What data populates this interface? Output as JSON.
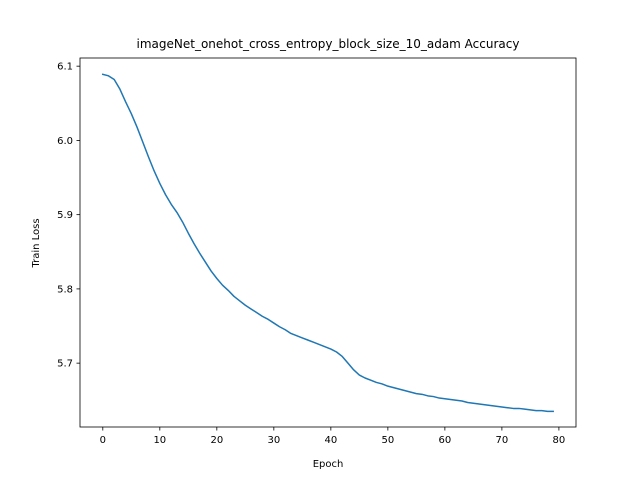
{
  "chart_data": {
    "type": "line",
    "title": "imageNet_onehot_cross_entropy_block_size_10_adam Accuracy",
    "xlabel": "Epoch",
    "ylabel": "Train Loss",
    "xlim": [
      -4,
      83
    ],
    "ylim": [
      5.614,
      6.111
    ],
    "xticks": [
      0,
      10,
      20,
      30,
      40,
      50,
      60,
      70,
      80
    ],
    "yticks": [
      5.7,
      5.8,
      5.9,
      6.0,
      6.1
    ],
    "xtick_labels": [
      "0",
      "10",
      "20",
      "30",
      "40",
      "50",
      "60",
      "70",
      "80"
    ],
    "ytick_labels": [
      "5.7",
      "5.8",
      "5.9",
      "6.0",
      "6.1"
    ],
    "grid": false,
    "series": [
      {
        "color": "#1f77b4",
        "x": [
          0,
          1,
          2,
          3,
          4,
          5,
          6,
          7,
          8,
          9,
          10,
          11,
          12,
          13,
          14,
          15,
          16,
          17,
          18,
          19,
          20,
          21,
          22,
          23,
          24,
          25,
          26,
          27,
          28,
          29,
          30,
          31,
          32,
          33,
          34,
          35,
          36,
          37,
          38,
          39,
          40,
          41,
          42,
          43,
          44,
          45,
          46,
          47,
          48,
          49,
          50,
          51,
          52,
          53,
          54,
          55,
          56,
          57,
          58,
          59,
          60,
          61,
          62,
          63,
          64,
          65,
          66,
          67,
          68,
          69,
          70,
          71,
          72,
          73,
          74,
          75,
          76,
          77,
          78,
          79
        ],
        "values": [
          6.089,
          6.087,
          6.082,
          6.069,
          6.052,
          6.036,
          6.018,
          5.998,
          5.978,
          5.959,
          5.942,
          5.927,
          5.914,
          5.903,
          5.89,
          5.875,
          5.861,
          5.848,
          5.836,
          5.824,
          5.814,
          5.805,
          5.798,
          5.79,
          5.784,
          5.778,
          5.773,
          5.768,
          5.763,
          5.759,
          5.754,
          5.749,
          5.745,
          5.74,
          5.737,
          5.734,
          5.731,
          5.728,
          5.725,
          5.722,
          5.719,
          5.715,
          5.709,
          5.7,
          5.691,
          5.684,
          5.68,
          5.677,
          5.674,
          5.672,
          5.669,
          5.667,
          5.665,
          5.663,
          5.661,
          5.659,
          5.658,
          5.656,
          5.655,
          5.653,
          5.652,
          5.651,
          5.65,
          5.649,
          5.647,
          5.646,
          5.645,
          5.644,
          5.643,
          5.642,
          5.641,
          5.64,
          5.639,
          5.639,
          5.638,
          5.637,
          5.636,
          5.636,
          5.635,
          5.635
        ]
      }
    ]
  }
}
